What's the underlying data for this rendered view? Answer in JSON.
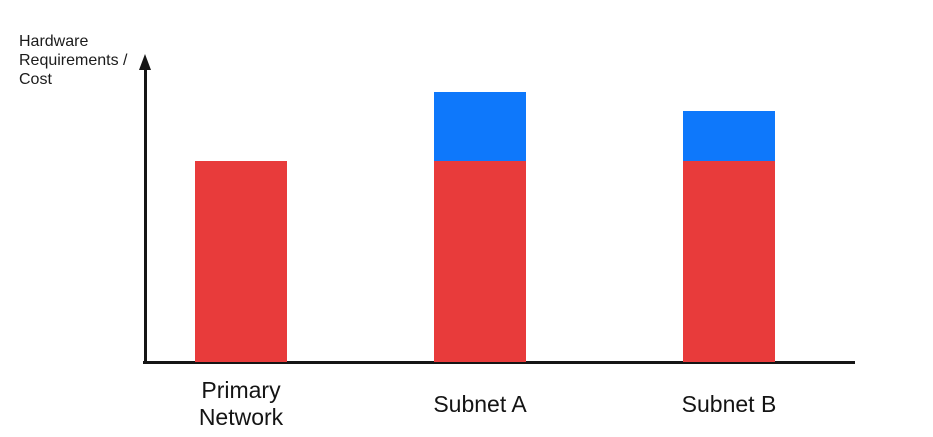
{
  "page": {
    "background": "#FFFFFF"
  },
  "chart_data": {
    "type": "bar",
    "subtype": "stacked",
    "title": "",
    "ylabel": "Hardware Requirements / Cost",
    "ylabel_lines": [
      "Hardware",
      "Requirements /",
      "Cost"
    ],
    "xlabel": "",
    "categories": [
      "Primary Network",
      "Subnet A",
      "Subnet B"
    ],
    "series": [
      {
        "name": "red-base-segment",
        "color": "#E83B3B",
        "values": [
          65.5,
          65.5,
          65.5
        ]
      },
      {
        "name": "blue-top-segment",
        "color": "#0E78FB",
        "values": [
          0,
          22.5,
          16.3
        ]
      }
    ],
    "ylim": [
      0,
      100
    ],
    "grid": false,
    "legend": false,
    "y_axis_arrow": true,
    "x_axis_arrow": false,
    "axis_color": "#151515",
    "text_color": "#1B1B1B"
  }
}
